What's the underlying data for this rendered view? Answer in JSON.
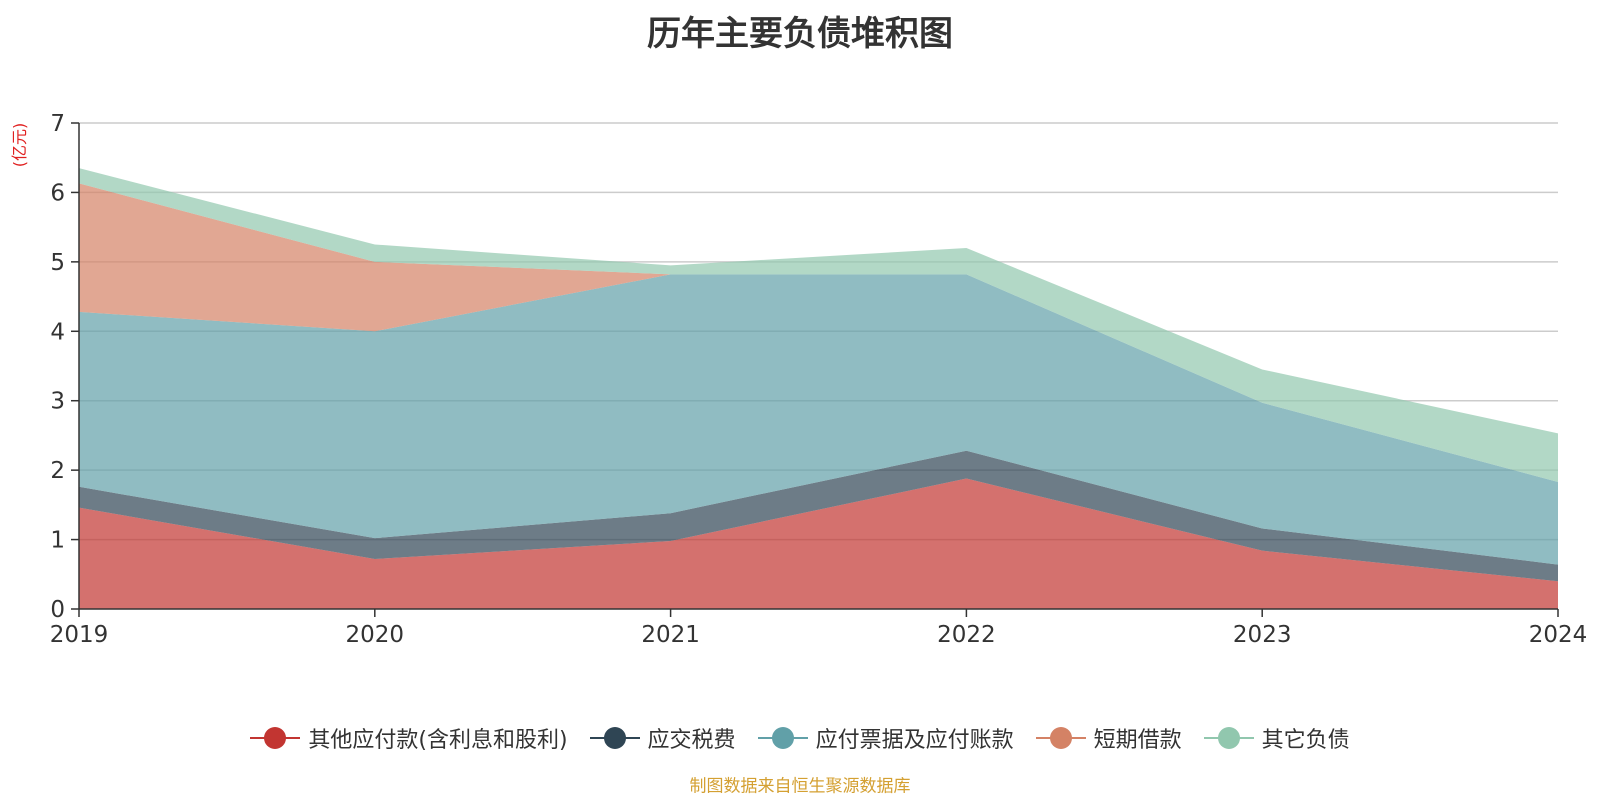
{
  "chart_data": {
    "type": "area",
    "stacked": true,
    "title": "历年主要负债堆积图",
    "unit_label": "(亿元)",
    "categories": [
      "2019",
      "2020",
      "2021",
      "2022",
      "2023",
      "2024"
    ],
    "ylim": [
      0,
      7
    ],
    "yticks": [
      0,
      1,
      2,
      3,
      4,
      5,
      6,
      7
    ],
    "grid": true,
    "legend_position": "bottom",
    "series": [
      {
        "name": "其他应付款(含利息和股利)",
        "color": "#c23531",
        "values": [
          1.46,
          0.72,
          0.98,
          1.88,
          0.84,
          0.4
        ]
      },
      {
        "name": "应交税费",
        "color": "#2f4554",
        "values": [
          0.3,
          0.3,
          0.4,
          0.4,
          0.32,
          0.24
        ]
      },
      {
        "name": "应付票据及应付账款",
        "color": "#61a0a8",
        "values": [
          2.52,
          2.98,
          3.44,
          2.54,
          1.81,
          1.19
        ]
      },
      {
        "name": "短期借款",
        "color": "#d48265",
        "values": [
          1.85,
          1.0,
          0.0,
          0.0,
          0.0,
          0.0
        ]
      },
      {
        "name": "其它负债",
        "color": "#91c7ae",
        "values": [
          0.22,
          0.25,
          0.13,
          0.38,
          0.48,
          0.7
        ]
      }
    ],
    "source": "制图数据来自恒生聚源数据库"
  }
}
